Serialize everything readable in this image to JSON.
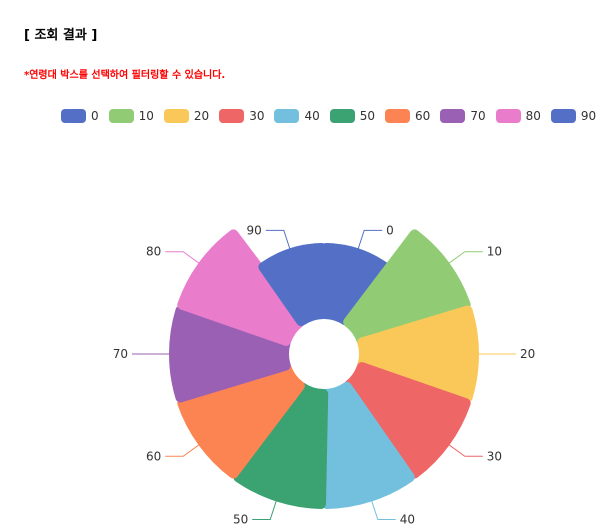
{
  "header": {
    "title": "[ 조회 결과 ]",
    "notice": "*연령대 박스를 선택하여 필터링할 수 있습니다."
  },
  "chart_data": {
    "type": "pie",
    "variant": "rose",
    "legend_position": "top",
    "categories": [
      "0",
      "10",
      "20",
      "30",
      "40",
      "50",
      "60",
      "70",
      "80",
      "90"
    ],
    "values": [
      60,
      100,
      100,
      100,
      100,
      100,
      100,
      100,
      100,
      60
    ],
    "colors": [
      "#5470c6",
      "#91cc75",
      "#fac858",
      "#ee6666",
      "#73c0de",
      "#3ba272",
      "#fc8452",
      "#9a60b4",
      "#ea7ccc",
      "#5470c6"
    ]
  }
}
